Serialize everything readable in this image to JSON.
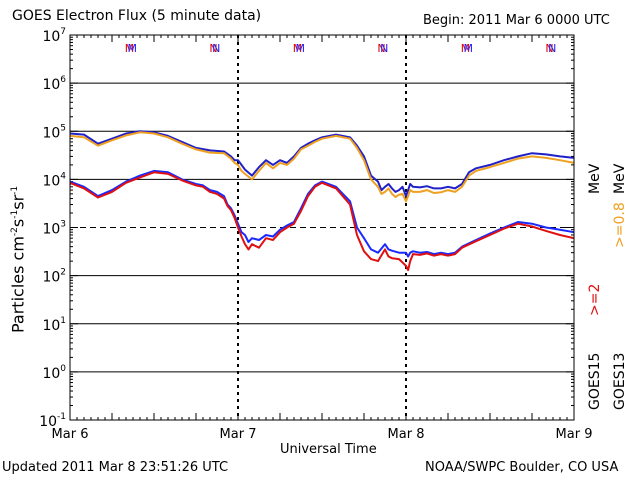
{
  "header": {
    "title": "GOES Electron Flux (5 minute data)",
    "begin": "Begin: 2011 Mar 6 0000 UTC"
  },
  "footer": {
    "updated": "Updated 2011 Mar  8 23:51:26 UTC",
    "credit": "NOAA/SWPC Boulder, CO USA"
  },
  "chart_data": {
    "type": "line",
    "title": "GOES Electron Flux (5 minute data)",
    "xlabel": "Universal Time",
    "ylabel": "Particles cm-2s-1sr-1",
    "ylabel_parts": {
      "base": "Particles cm",
      "e1": "-2",
      "mid": "s",
      "e2": "-1",
      "mid2": "sr",
      "e3": "-1"
    },
    "scale": "log",
    "ylim": [
      0.1,
      10000000
    ],
    "y_ticks": [
      {
        "exp": "-1",
        "base": "10"
      },
      {
        "exp": "0",
        "base": "10"
      },
      {
        "exp": "1",
        "base": "10"
      },
      {
        "exp": "2",
        "base": "10"
      },
      {
        "exp": "3",
        "base": "10"
      },
      {
        "exp": "4",
        "base": "10"
      },
      {
        "exp": "5",
        "base": "10"
      },
      {
        "exp": "6",
        "base": "10"
      },
      {
        "exp": "7",
        "base": "10"
      }
    ],
    "x_ticks": [
      "Mar 6",
      "Mar 7",
      "Mar 8",
      "Mar 9"
    ],
    "xlim_hours": [
      0,
      72
    ],
    "day_boundaries_hours": [
      24,
      48
    ],
    "dashed_threshold": 1000,
    "grid": "horizontal decade lines",
    "satellite_marks": [
      {
        "label": "M",
        "hour": 8.5,
        "color": "#e00000",
        "row": "top"
      },
      {
        "label": "M",
        "hour": 8.9,
        "color": "#1a1aff",
        "row": "top"
      },
      {
        "label": "N",
        "hour": 20.5,
        "color": "#e00000",
        "row": "top"
      },
      {
        "label": "N",
        "hour": 20.9,
        "color": "#1a1aff",
        "row": "top"
      },
      {
        "label": "M",
        "hour": 32.5,
        "color": "#e00000",
        "row": "top"
      },
      {
        "label": "M",
        "hour": 32.9,
        "color": "#1a1aff",
        "row": "top"
      },
      {
        "label": "N",
        "hour": 44.5,
        "color": "#e00000",
        "row": "top"
      },
      {
        "label": "N",
        "hour": 44.9,
        "color": "#1a1aff",
        "row": "top"
      },
      {
        "label": "M",
        "hour": 56.5,
        "color": "#e00000",
        "row": "top"
      },
      {
        "label": "M",
        "hour": 56.9,
        "color": "#1a1aff",
        "row": "top"
      },
      {
        "label": "N",
        "hour": 68.5,
        "color": "#e00000",
        "row": "top"
      },
      {
        "label": "N",
        "hour": 68.9,
        "color": "#1a1aff",
        "row": "top"
      }
    ],
    "side_labels": {
      "ge08": ">=0.8",
      "ge2": ">=2",
      "mev": "MeV",
      "goes15": "GOES15",
      "goes13": "GOES13"
    },
    "colors": {
      "goes15_ge08": "#2020c8",
      "goes13_ge08": "#f0a020",
      "goes15_ge2": "#1a2aff",
      "goes13_ge2": "#e01010"
    },
    "series": [
      {
        "name": "GOES15 >=0.8 MeV",
        "color": "#2020c8",
        "x": [
          0,
          2,
          4,
          6,
          8,
          10,
          12,
          14,
          16,
          18,
          20,
          22,
          23,
          23.5,
          24,
          24.5,
          25,
          26,
          27,
          28,
          29,
          30,
          31,
          32,
          33,
          34,
          35,
          36,
          38,
          40,
          41,
          42,
          43,
          44,
          44.5,
          45,
          45.5,
          46,
          46.5,
          47,
          47.5,
          48,
          48.3,
          48.6,
          49,
          50,
          51,
          52,
          53,
          54,
          55,
          56,
          57,
          58,
          60,
          62,
          64,
          66,
          68,
          70,
          72
        ],
        "values": [
          90000,
          85000,
          55000,
          70000,
          90000,
          100000,
          95000,
          80000,
          60000,
          45000,
          40000,
          38000,
          30000,
          25000,
          25000,
          20000,
          16000,
          12000,
          18000,
          25000,
          20000,
          25000,
          22000,
          30000,
          45000,
          55000,
          65000,
          75000,
          85000,
          75000,
          50000,
          30000,
          12000,
          9000,
          6000,
          7000,
          8000,
          6500,
          5500,
          6000,
          7000,
          4500,
          6000,
          8000,
          7000,
          6800,
          7200,
          6500,
          6500,
          7000,
          6500,
          8000,
          14000,
          17000,
          20000,
          25000,
          30000,
          35000,
          33000,
          30000,
          28000
        ]
      },
      {
        "name": "GOES13 >=0.8 MeV",
        "color": "#f0a020",
        "x": [
          0,
          2,
          4,
          6,
          8,
          10,
          12,
          14,
          16,
          18,
          20,
          22,
          23,
          23.5,
          24,
          24.5,
          25,
          26,
          27,
          28,
          29,
          30,
          31,
          32,
          33,
          34,
          35,
          36,
          38,
          40,
          41,
          42,
          43,
          44,
          44.5,
          45,
          45.5,
          46,
          46.5,
          47,
          47.5,
          48,
          48.3,
          48.6,
          49,
          50,
          51,
          52,
          53,
          54,
          55,
          56,
          57,
          58,
          60,
          62,
          64,
          66,
          68,
          70,
          72
        ],
        "values": [
          80000,
          75000,
          50000,
          65000,
          82000,
          95000,
          90000,
          75000,
          55000,
          42000,
          36000,
          35000,
          27000,
          22000,
          20000,
          15000,
          13000,
          10000,
          15000,
          22000,
          17000,
          22000,
          20000,
          27000,
          42000,
          50000,
          60000,
          70000,
          80000,
          70000,
          45000,
          25000,
          10000,
          7000,
          5000,
          5500,
          6500,
          5000,
          4300,
          4800,
          5000,
          3500,
          4500,
          6000,
          5500,
          5500,
          6000,
          5200,
          5400,
          6000,
          5500,
          7000,
          12000,
          15000,
          18000,
          22000,
          27000,
          30000,
          28000,
          25000,
          22000
        ]
      },
      {
        "name": "GOES15 >=2 MeV",
        "color": "#1a2aff",
        "x": [
          0,
          2,
          4,
          6,
          8,
          10,
          12,
          14,
          16,
          18,
          19,
          20,
          21,
          22,
          22.5,
          23,
          23.5,
          24,
          24.5,
          25,
          25.5,
          26,
          27,
          28,
          29,
          30,
          31,
          32,
          33,
          34,
          35,
          36,
          38,
          40,
          41,
          42,
          43,
          44,
          45,
          45.5,
          46,
          47,
          48,
          48.3,
          48.6,
          49,
          50,
          51,
          52,
          53,
          54,
          55,
          56,
          58,
          60,
          62,
          64,
          66,
          68,
          70,
          72
        ],
        "values": [
          9000,
          7000,
          4500,
          6000,
          9000,
          12000,
          15000,
          14000,
          10000,
          8000,
          7500,
          6000,
          5500,
          4500,
          3000,
          2500,
          1800,
          1200,
          800,
          700,
          500,
          600,
          550,
          700,
          650,
          900,
          1100,
          1300,
          2500,
          5000,
          7500,
          9000,
          7000,
          3500,
          1000,
          600,
          350,
          300,
          450,
          350,
          330,
          300,
          300,
          250,
          300,
          320,
          300,
          310,
          280,
          300,
          280,
          300,
          400,
          550,
          750,
          1000,
          1300,
          1200,
          1000,
          900,
          800
        ]
      },
      {
        "name": "GOES13 >=2 MeV",
        "color": "#e01010",
        "x": [
          0,
          2,
          4,
          6,
          8,
          10,
          12,
          14,
          16,
          18,
          19,
          20,
          21,
          22,
          22.5,
          23,
          23.5,
          24,
          24.5,
          25,
          25.5,
          26,
          27,
          28,
          29,
          30,
          31,
          32,
          33,
          34,
          35,
          36,
          38,
          40,
          41,
          42,
          43,
          44,
          45,
          45.5,
          46,
          47,
          48,
          48.3,
          48.6,
          49,
          50,
          51,
          52,
          53,
          54,
          55,
          56,
          58,
          60,
          62,
          64,
          66,
          68,
          70,
          72
        ],
        "values": [
          8500,
          6500,
          4200,
          5500,
          8500,
          11000,
          14000,
          13000,
          9500,
          7500,
          7000,
          5500,
          5000,
          4000,
          2800,
          2300,
          1600,
          1000,
          650,
          450,
          350,
          450,
          380,
          600,
          550,
          800,
          1000,
          1200,
          2200,
          4500,
          7000,
          8500,
          6500,
          3000,
          700,
          320,
          220,
          200,
          350,
          250,
          230,
          220,
          160,
          130,
          200,
          280,
          270,
          290,
          260,
          280,
          260,
          280,
          380,
          520,
          700,
          950,
          1200,
          1050,
          850,
          700,
          600
        ]
      }
    ]
  }
}
